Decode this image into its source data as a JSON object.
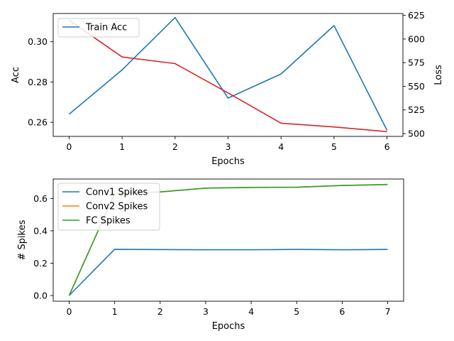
{
  "chart_data": [
    {
      "type": "line",
      "xlabel": "Epochs",
      "ylabel": "Acc",
      "ylabel_right": "Loss",
      "x": [
        0,
        1,
        2,
        3,
        4,
        5,
        6
      ],
      "xlim": [
        -0.3,
        6.3
      ],
      "ylim": [
        0.253,
        0.314
      ],
      "ylim_right": [
        497,
        627
      ],
      "xticks": [
        0,
        1,
        2,
        3,
        4,
        5,
        6
      ],
      "yticks": [
        0.26,
        0.28,
        0.3
      ],
      "yticks_right": [
        500,
        525,
        550,
        575,
        600,
        625
      ],
      "grid": false,
      "legend": "upper left",
      "series": [
        {
          "name": "Train Acc",
          "axis": "left",
          "color": "#1f77b4",
          "values": [
            0.264,
            0.286,
            0.312,
            0.272,
            0.284,
            0.308,
            0.256
          ]
        },
        {
          "name": "",
          "axis": "right",
          "color": "#d62728",
          "values": [
            620,
            581,
            574,
            543,
            511,
            507,
            502
          ]
        }
      ]
    },
    {
      "type": "line",
      "xlabel": "Epochs",
      "ylabel": "# Spikes",
      "x": [
        0,
        1,
        2,
        3,
        4,
        5,
        6,
        7
      ],
      "xlim": [
        -0.35,
        7.35
      ],
      "ylim": [
        -0.035,
        0.72
      ],
      "xticks": [
        0,
        1,
        2,
        3,
        4,
        5,
        6,
        7
      ],
      "yticks": [
        0.0,
        0.2,
        0.4,
        0.6
      ],
      "grid": false,
      "legend": "upper left",
      "series": [
        {
          "name": "Conv1 Spikes",
          "color": "#1f77b4",
          "values": [
            0.0,
            0.286,
            0.284,
            0.283,
            0.283,
            0.285,
            0.283,
            0.285
          ]
        },
        {
          "name": "Conv2 Spikes",
          "color": "#ff7f0e",
          "values": [
            0.0,
            0.629,
            0.64,
            0.664,
            0.668,
            0.669,
            0.68,
            0.686
          ]
        },
        {
          "name": "FC Spikes",
          "color": "#2ca02c",
          "values": [
            0.0,
            0.629,
            0.64,
            0.664,
            0.668,
            0.669,
            0.68,
            0.686
          ]
        }
      ]
    }
  ]
}
